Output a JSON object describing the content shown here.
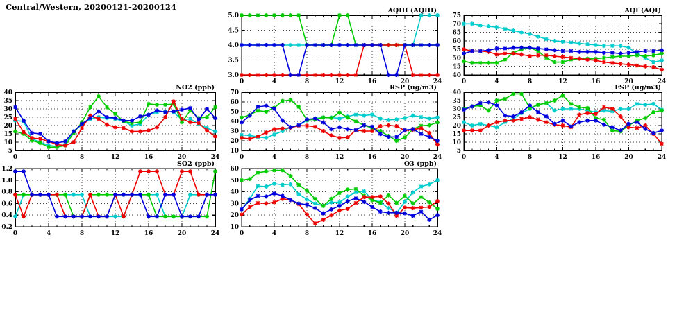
{
  "title": "Central/Western, 20200121-20200124",
  "colors": {
    "cyan": "#00cccc",
    "green": "#00cc00",
    "red": "#ee0000",
    "blue": "#0000dd"
  },
  "hours": [
    0,
    1,
    2,
    3,
    4,
    5,
    6,
    7,
    8,
    9,
    10,
    11,
    12,
    13,
    14,
    15,
    16,
    17,
    18,
    19,
    20,
    21,
    22,
    23,
    24
  ],
  "chart_data": [
    {
      "id": "aqhi",
      "type": "line",
      "title": "AQHI (AQHI)",
      "xlabel": "",
      "ylabel": "",
      "xlim": [
        0,
        24
      ],
      "ylim": [
        3,
        5
      ],
      "xticks": [
        0,
        4,
        8,
        12,
        16,
        20,
        24
      ],
      "yticks": [
        3,
        3.5,
        4,
        4.5,
        5
      ],
      "ytick_labels": [
        "3.0",
        "3.5",
        "4.0",
        "4.5",
        "5.0"
      ],
      "grid": true,
      "legend": "none",
      "series": [
        {
          "name": "cyan",
          "color": "#00cccc",
          "values": [
            4,
            4,
            4,
            4,
            4,
            4,
            4,
            4,
            4,
            4,
            4,
            4,
            4,
            4,
            4,
            4,
            4,
            4,
            4,
            4,
            4,
            4,
            5,
            5,
            5
          ]
        },
        {
          "name": "green",
          "color": "#00cc00",
          "values": [
            5,
            5,
            5,
            5,
            5,
            5,
            5,
            5,
            4,
            4,
            4,
            4,
            5,
            5,
            4,
            4,
            4,
            4,
            4,
            4,
            4,
            4,
            4,
            4,
            4
          ]
        },
        {
          "name": "red",
          "color": "#ee0000",
          "values": [
            3,
            3,
            3,
            3,
            3,
            3,
            3,
            3,
            3,
            3,
            3,
            3,
            3,
            3,
            3,
            4,
            4,
            4,
            4,
            4,
            4,
            3,
            3,
            3,
            3
          ]
        },
        {
          "name": "blue",
          "color": "#0000dd",
          "values": [
            4,
            4,
            4,
            4,
            4,
            4,
            3,
            3,
            4,
            4,
            4,
            4,
            4,
            4,
            4,
            4,
            4,
            4,
            3,
            3,
            4,
            4,
            4,
            4,
            4
          ]
        }
      ]
    },
    {
      "id": "aqi",
      "type": "line",
      "title": "AQI (AQI)",
      "xlabel": "",
      "ylabel": "",
      "xlim": [
        0,
        24
      ],
      "ylim": [
        40,
        75
      ],
      "xticks": [
        0,
        4,
        8,
        12,
        16,
        20,
        24
      ],
      "yticks": [
        40,
        45,
        50,
        55,
        60,
        65,
        70,
        75
      ],
      "ytick_labels": [
        "40",
        "45",
        "50",
        "55",
        "60",
        "65",
        "70",
        "75"
      ],
      "grid": true,
      "legend": "none",
      "series": [
        {
          "name": "cyan",
          "color": "#00cccc",
          "values": [
            70,
            70,
            69,
            68.5,
            68,
            67,
            66,
            65,
            64,
            62.5,
            61,
            60,
            59.5,
            59,
            58.5,
            58,
            57.5,
            57,
            57,
            57,
            56,
            52.5,
            50,
            47.5,
            48.5
          ]
        },
        {
          "name": "green",
          "color": "#00cc00",
          "values": [
            48,
            47,
            47,
            47,
            47,
            49,
            53,
            55,
            56,
            54,
            50,
            47.5,
            47.5,
            49,
            49.5,
            49.5,
            49.5,
            50,
            50.5,
            51,
            51,
            51.5,
            51,
            51.5,
            52.5
          ]
        },
        {
          "name": "red",
          "color": "#ee0000",
          "values": [
            55,
            54,
            54,
            53.5,
            52,
            52.5,
            52.5,
            52,
            51,
            51.5,
            51.5,
            51,
            50.5,
            50,
            49.5,
            49,
            48.5,
            47.5,
            47,
            46.5,
            46,
            45.5,
            45,
            44.5,
            43
          ]
        },
        {
          "name": "blue",
          "color": "#0000dd",
          "values": [
            52.5,
            54,
            54,
            54.5,
            55.5,
            55.5,
            56,
            56,
            56,
            55.5,
            55,
            54.5,
            54,
            54,
            53.5,
            53.5,
            53.5,
            53,
            53,
            52.5,
            53,
            53.5,
            54,
            54,
            54.5
          ]
        }
      ]
    },
    {
      "id": "no2",
      "type": "line",
      "title": "NO2 (ppb)",
      "xlabel": "",
      "ylabel": "",
      "xlim": [
        0,
        24
      ],
      "ylim": [
        5,
        40
      ],
      "xticks": [
        0,
        4,
        8,
        12,
        16,
        20,
        24
      ],
      "yticks": [
        5,
        10,
        15,
        20,
        25,
        30,
        35,
        40
      ],
      "ytick_labels": [
        "5",
        "10",
        "15",
        "20",
        "25",
        "30",
        "35",
        "40"
      ],
      "grid": true,
      "legend": "none",
      "series": [
        {
          "name": "cyan",
          "color": "#00cccc",
          "values": [
            23,
            22.5,
            12,
            10,
            8,
            7.5,
            8.5,
            16.5,
            20.5,
            24,
            25,
            24.5,
            24,
            22.5,
            20,
            21,
            26.5,
            28,
            28.5,
            28,
            23.5,
            24,
            21,
            18.5,
            16.5
          ]
        },
        {
          "name": "green",
          "color": "#00cc00",
          "values": [
            16.5,
            15,
            11,
            9.5,
            7,
            7,
            8,
            15.5,
            22,
            31,
            37.5,
            31,
            27,
            22.5,
            21.5,
            22,
            33,
            32.5,
            32.5,
            33,
            22,
            29,
            24.5,
            25,
            31
          ]
        },
        {
          "name": "red",
          "color": "#ee0000",
          "values": [
            24,
            16,
            12.5,
            12,
            10.5,
            8.5,
            8,
            10,
            18.5,
            26,
            24,
            20.5,
            19,
            18.5,
            16.5,
            16.5,
            17,
            19,
            25,
            34.5,
            24,
            22,
            21.5,
            17,
            13.5
          ]
        },
        {
          "name": "blue",
          "color": "#0000dd",
          "values": [
            31,
            23,
            15.5,
            15,
            10.5,
            9.5,
            10.5,
            16.5,
            21,
            24.5,
            28.5,
            25,
            24.5,
            23,
            23,
            25.5,
            26.5,
            29,
            28,
            28.5,
            29.5,
            30.5,
            23.5,
            30,
            24.5
          ]
        }
      ]
    },
    {
      "id": "rsp",
      "type": "line",
      "title": "RSP (ug/m3)",
      "xlabel": "",
      "ylabel": "",
      "xlim": [
        0,
        24
      ],
      "ylim": [
        10,
        70
      ],
      "xticks": [
        0,
        4,
        8,
        12,
        16,
        20,
        24
      ],
      "yticks": [
        10,
        20,
        30,
        40,
        50,
        60,
        70
      ],
      "ytick_labels": [
        "10",
        "20",
        "30",
        "40",
        "50",
        "60",
        "70"
      ],
      "grid": true,
      "legend": "none",
      "series": [
        {
          "name": "cyan",
          "color": "#00cccc",
          "values": [
            26,
            25.5,
            24,
            23,
            26.5,
            30,
            34,
            36,
            41,
            43,
            44,
            44,
            43,
            45,
            47,
            46,
            47,
            43,
            41.5,
            42,
            43.5,
            46,
            44.5,
            43,
            44
          ]
        },
        {
          "name": "green",
          "color": "#00cc00",
          "values": [
            44,
            46.5,
            51,
            50,
            54,
            61,
            62,
            55,
            41.5,
            42,
            44,
            43.5,
            49,
            44,
            40,
            36,
            33,
            30,
            25,
            20,
            23.5,
            32,
            35.5,
            36,
            39
          ]
        },
        {
          "name": "red",
          "color": "#ee0000",
          "values": [
            23,
            22,
            24.5,
            28.5,
            32,
            32.5,
            33.5,
            35.5,
            35.5,
            34.5,
            30,
            25.5,
            23,
            23.5,
            31,
            30,
            30,
            35,
            36,
            35,
            30.5,
            31.5,
            33,
            28,
            16
          ]
        },
        {
          "name": "blue",
          "color": "#0000dd",
          "values": [
            39,
            46,
            55,
            56,
            53,
            41,
            34,
            36,
            42,
            43,
            39,
            32,
            34,
            32,
            31,
            36,
            34.5,
            27,
            24,
            24,
            31,
            32,
            27,
            24,
            20
          ]
        }
      ]
    },
    {
      "id": "fsp",
      "type": "line",
      "title": "FSP (ug/m3)",
      "xlabel": "",
      "ylabel": "",
      "xlim": [
        0,
        24
      ],
      "ylim": [
        5,
        40
      ],
      "xticks": [
        0,
        4,
        8,
        12,
        16,
        20,
        24
      ],
      "yticks": [
        5,
        10,
        15,
        20,
        25,
        30,
        35,
        40
      ],
      "ytick_labels": [
        "5",
        "10",
        "15",
        "20",
        "25",
        "30",
        "35",
        "40"
      ],
      "grid": true,
      "legend": "none",
      "series": [
        {
          "name": "cyan",
          "color": "#00cccc",
          "values": [
            22,
            20,
            21,
            20,
            19,
            22,
            24,
            27.5,
            30,
            32.5,
            33.5,
            29,
            30,
            30,
            30,
            29,
            28,
            29,
            28.5,
            30,
            30,
            33,
            32.5,
            33,
            29.5
          ]
        },
        {
          "name": "green",
          "color": "#00cc00",
          "values": [
            30,
            31.5,
            32,
            29,
            35,
            36,
            39,
            39,
            30.5,
            32.5,
            33.5,
            35,
            38,
            33,
            31,
            30.5,
            24.5,
            23.5,
            17,
            16.5,
            20,
            23,
            24.5,
            28,
            29
          ]
        },
        {
          "name": "red",
          "color": "#ee0000",
          "values": [
            17,
            17,
            17,
            20,
            22,
            23,
            23,
            24,
            25,
            23.5,
            22,
            20.5,
            20,
            19,
            26.5,
            27.5,
            27,
            31,
            30,
            25.5,
            19,
            18.5,
            20,
            15,
            9
          ]
        },
        {
          "name": "blue",
          "color": "#0000dd",
          "values": [
            29.5,
            31.5,
            33.5,
            34,
            32,
            26,
            25.5,
            28,
            32,
            28,
            25.5,
            21,
            23,
            19.5,
            22,
            23,
            23,
            20.5,
            19,
            17,
            21,
            22,
            18,
            15.5,
            17
          ]
        }
      ]
    },
    {
      "id": "so2",
      "type": "line",
      "title": "SO2 (ppb)",
      "xlabel": "",
      "ylabel": "",
      "xlim": [
        0,
        24
      ],
      "ylim": [
        0.2,
        1.2
      ],
      "xticks": [
        0,
        4,
        8,
        12,
        16,
        20,
        24
      ],
      "yticks": [
        0.2,
        0.4,
        0.6,
        0.8,
        1.0,
        1.2
      ],
      "ytick_labels": [
        "0.2",
        "0.4",
        "0.6",
        "0.8",
        "1.0",
        "1.2"
      ],
      "grid": true,
      "legend": "none",
      "series": [
        {
          "name": "cyan",
          "color": "#00cccc",
          "values": [
            0.375,
            0.75,
            0.75,
            0.75,
            0.75,
            0.75,
            0.75,
            0.75,
            0.75,
            0.375,
            0.375,
            0.375,
            0.375,
            0.375,
            0.75,
            0.75,
            0.75,
            0.75,
            0.375,
            0.375,
            0.375,
            0.75,
            0.75,
            0.75,
            0.75
          ]
        },
        {
          "name": "green",
          "color": "#00cc00",
          "values": [
            0.75,
            0.75,
            0.75,
            0.75,
            0.75,
            0.75,
            0.75,
            0.375,
            0.375,
            0.75,
            0.75,
            0.75,
            0.75,
            0.75,
            0.75,
            0.75,
            0.75,
            0.375,
            0.375,
            0.375,
            0.375,
            0.375,
            0.375,
            0.375,
            1.15
          ]
        },
        {
          "name": "red",
          "color": "#ee0000",
          "values": [
            0.75,
            0.375,
            0.75,
            0.75,
            0.75,
            0.75,
            0.375,
            0.375,
            0.375,
            0.75,
            0.375,
            0.375,
            0.75,
            0.375,
            0.75,
            1.15,
            1.15,
            1.15,
            0.75,
            0.75,
            1.15,
            1.15,
            0.75,
            0.75,
            0.75
          ]
        },
        {
          "name": "blue",
          "color": "#0000dd",
          "values": [
            1.15,
            1.15,
            0.75,
            0.75,
            0.75,
            0.375,
            0.375,
            0.375,
            0.375,
            0.375,
            0.375,
            0.375,
            0.75,
            0.75,
            0.75,
            0.75,
            0.375,
            0.375,
            0.75,
            0.75,
            0.375,
            0.375,
            0.375,
            0.75,
            0.75
          ]
        }
      ]
    },
    {
      "id": "o3",
      "type": "line",
      "title": "O3 (ppb)",
      "xlabel": "",
      "ylabel": "",
      "xlim": [
        0,
        24
      ],
      "ylim": [
        10,
        60
      ],
      "xticks": [
        0,
        4,
        8,
        12,
        16,
        20,
        24
      ],
      "yticks": [
        10,
        20,
        30,
        40,
        50,
        60
      ],
      "ytick_labels": [
        "10",
        "20",
        "30",
        "40",
        "50",
        "60"
      ],
      "grid": true,
      "legend": "none",
      "series": [
        {
          "name": "cyan",
          "color": "#00cccc",
          "values": [
            25,
            34,
            45,
            44.5,
            47,
            46,
            46.5,
            38,
            33.5,
            30,
            28,
            31,
            31,
            36,
            39.5,
            40.5,
            33.5,
            31,
            26,
            22,
            31.5,
            39.5,
            44.5,
            46.5,
            50
          ]
        },
        {
          "name": "green",
          "color": "#00cc00",
          "values": [
            50,
            51,
            56.5,
            57.5,
            58.5,
            58.5,
            53.5,
            46,
            41,
            34,
            28,
            34,
            39,
            42,
            42.5,
            36.5,
            33,
            30.5,
            37,
            30.5,
            36.5,
            30,
            35.5,
            31,
            25.5
          ]
        },
        {
          "name": "red",
          "color": "#ee0000",
          "values": [
            20.5,
            27,
            30.5,
            30,
            31,
            34,
            33,
            29.5,
            20.5,
            13,
            16,
            20,
            24,
            25.5,
            30.5,
            35.5,
            35.5,
            36,
            30,
            19.5,
            26.5,
            26,
            26.5,
            27,
            32
          ]
        },
        {
          "name": "blue",
          "color": "#0000dd",
          "values": [
            25,
            33,
            36.5,
            36,
            38.5,
            36.5,
            33,
            30,
            29,
            26,
            21.5,
            25,
            28,
            32,
            34.5,
            31.5,
            27,
            23,
            22,
            22,
            21.5,
            19.5,
            23,
            16,
            20
          ]
        }
      ]
    }
  ]
}
